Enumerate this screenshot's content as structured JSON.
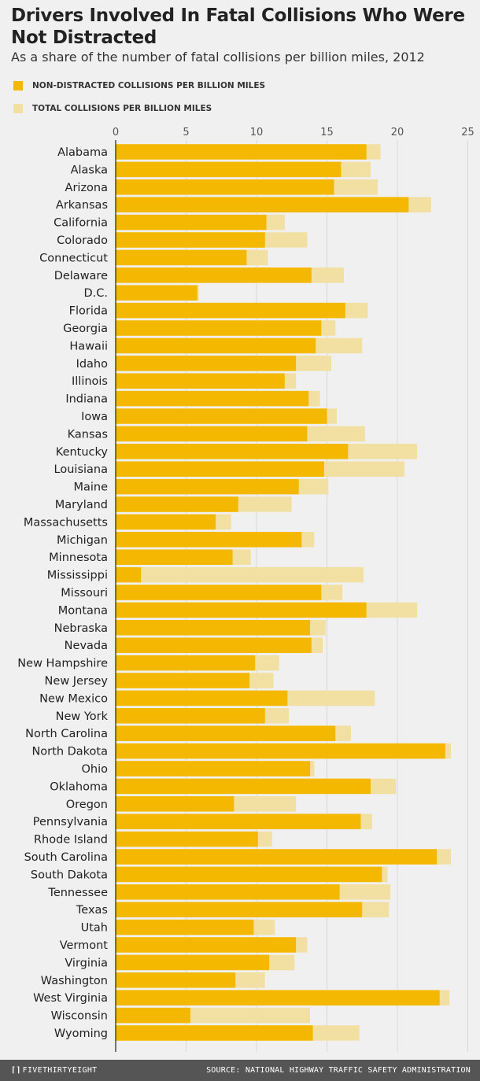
{
  "title": "Drivers Involved In Fatal Collisions Who Were Not Distracted",
  "subtitle": "As a share of the number of fatal collisions per billion miles, 2012",
  "legend": [
    {
      "label": "NON-DISTRACTED COLLISIONS PER BILLION MILES",
      "color": "#f5b800"
    },
    {
      "label": "TOTAL COLLISIONS PER BILLION MILES",
      "color": "#f2dfa2"
    }
  ],
  "footer": {
    "logo": "FIVETHIRTYEIGHT",
    "source": "SOURCE: NATIONAL HIGHWAY TRAFFIC SAFETY ADMINISTRATION"
  },
  "chart_data": {
    "type": "bar",
    "orientation": "horizontal",
    "title": "Drivers Involved In Fatal Collisions Who Were Not Distracted",
    "subtitle": "As a share of the number of fatal collisions per billion miles, 2012",
    "xlim": [
      0,
      25
    ],
    "xticks": [
      0,
      5,
      10,
      15,
      20,
      25
    ],
    "grid": true,
    "legend_position": "top-left",
    "categories": [
      "Alabama",
      "Alaska",
      "Arizona",
      "Arkansas",
      "California",
      "Colorado",
      "Connecticut",
      "Delaware",
      "D.C.",
      "Florida",
      "Georgia",
      "Hawaii",
      "Idaho",
      "Illinois",
      "Indiana",
      "Iowa",
      "Kansas",
      "Kentucky",
      "Louisiana",
      "Maine",
      "Maryland",
      "Massachusetts",
      "Michigan",
      "Minnesota",
      "Mississippi",
      "Missouri",
      "Montana",
      "Nebraska",
      "Nevada",
      "New Hampshire",
      "New Jersey",
      "New Mexico",
      "New York",
      "North Carolina",
      "North Dakota",
      "Ohio",
      "Oklahoma",
      "Oregon",
      "Pennsylvania",
      "Rhode Island",
      "South Carolina",
      "South Dakota",
      "Tennessee",
      "Texas",
      "Utah",
      "Vermont",
      "Virginia",
      "Washington",
      "West Virginia",
      "Wisconsin",
      "Wyoming"
    ],
    "series": [
      {
        "name": "NON-DISTRACTED COLLISIONS PER BILLION MILES",
        "color": "#f5b800",
        "values": [
          17.8,
          16.0,
          15.5,
          20.8,
          10.7,
          10.6,
          9.3,
          13.9,
          5.8,
          16.3,
          14.6,
          14.2,
          12.8,
          12.0,
          13.7,
          15.0,
          13.6,
          16.5,
          14.8,
          13.0,
          8.7,
          7.1,
          13.2,
          8.3,
          1.8,
          14.6,
          17.8,
          13.8,
          13.9,
          9.9,
          9.5,
          12.2,
          10.6,
          15.6,
          23.4,
          13.8,
          18.1,
          8.4,
          17.4,
          10.1,
          22.8,
          18.9,
          15.9,
          17.5,
          9.8,
          12.8,
          10.9,
          8.5,
          23.0,
          5.3,
          14.0
        ]
      },
      {
        "name": "TOTAL COLLISIONS PER BILLION MILES",
        "color": "#f2dfa2",
        "values": [
          18.8,
          18.1,
          18.6,
          22.4,
          12.0,
          13.6,
          10.8,
          16.2,
          5.9,
          17.9,
          15.6,
          17.5,
          15.3,
          12.8,
          14.5,
          15.7,
          17.7,
          21.4,
          20.5,
          15.1,
          12.5,
          8.2,
          14.1,
          9.6,
          17.6,
          16.1,
          21.4,
          14.9,
          14.7,
          11.6,
          11.2,
          18.4,
          12.3,
          16.7,
          23.8,
          14.1,
          19.9,
          12.8,
          18.2,
          11.1,
          23.8,
          19.3,
          19.5,
          19.4,
          11.3,
          13.6,
          12.7,
          10.6,
          23.7,
          13.8,
          17.3
        ]
      }
    ]
  }
}
